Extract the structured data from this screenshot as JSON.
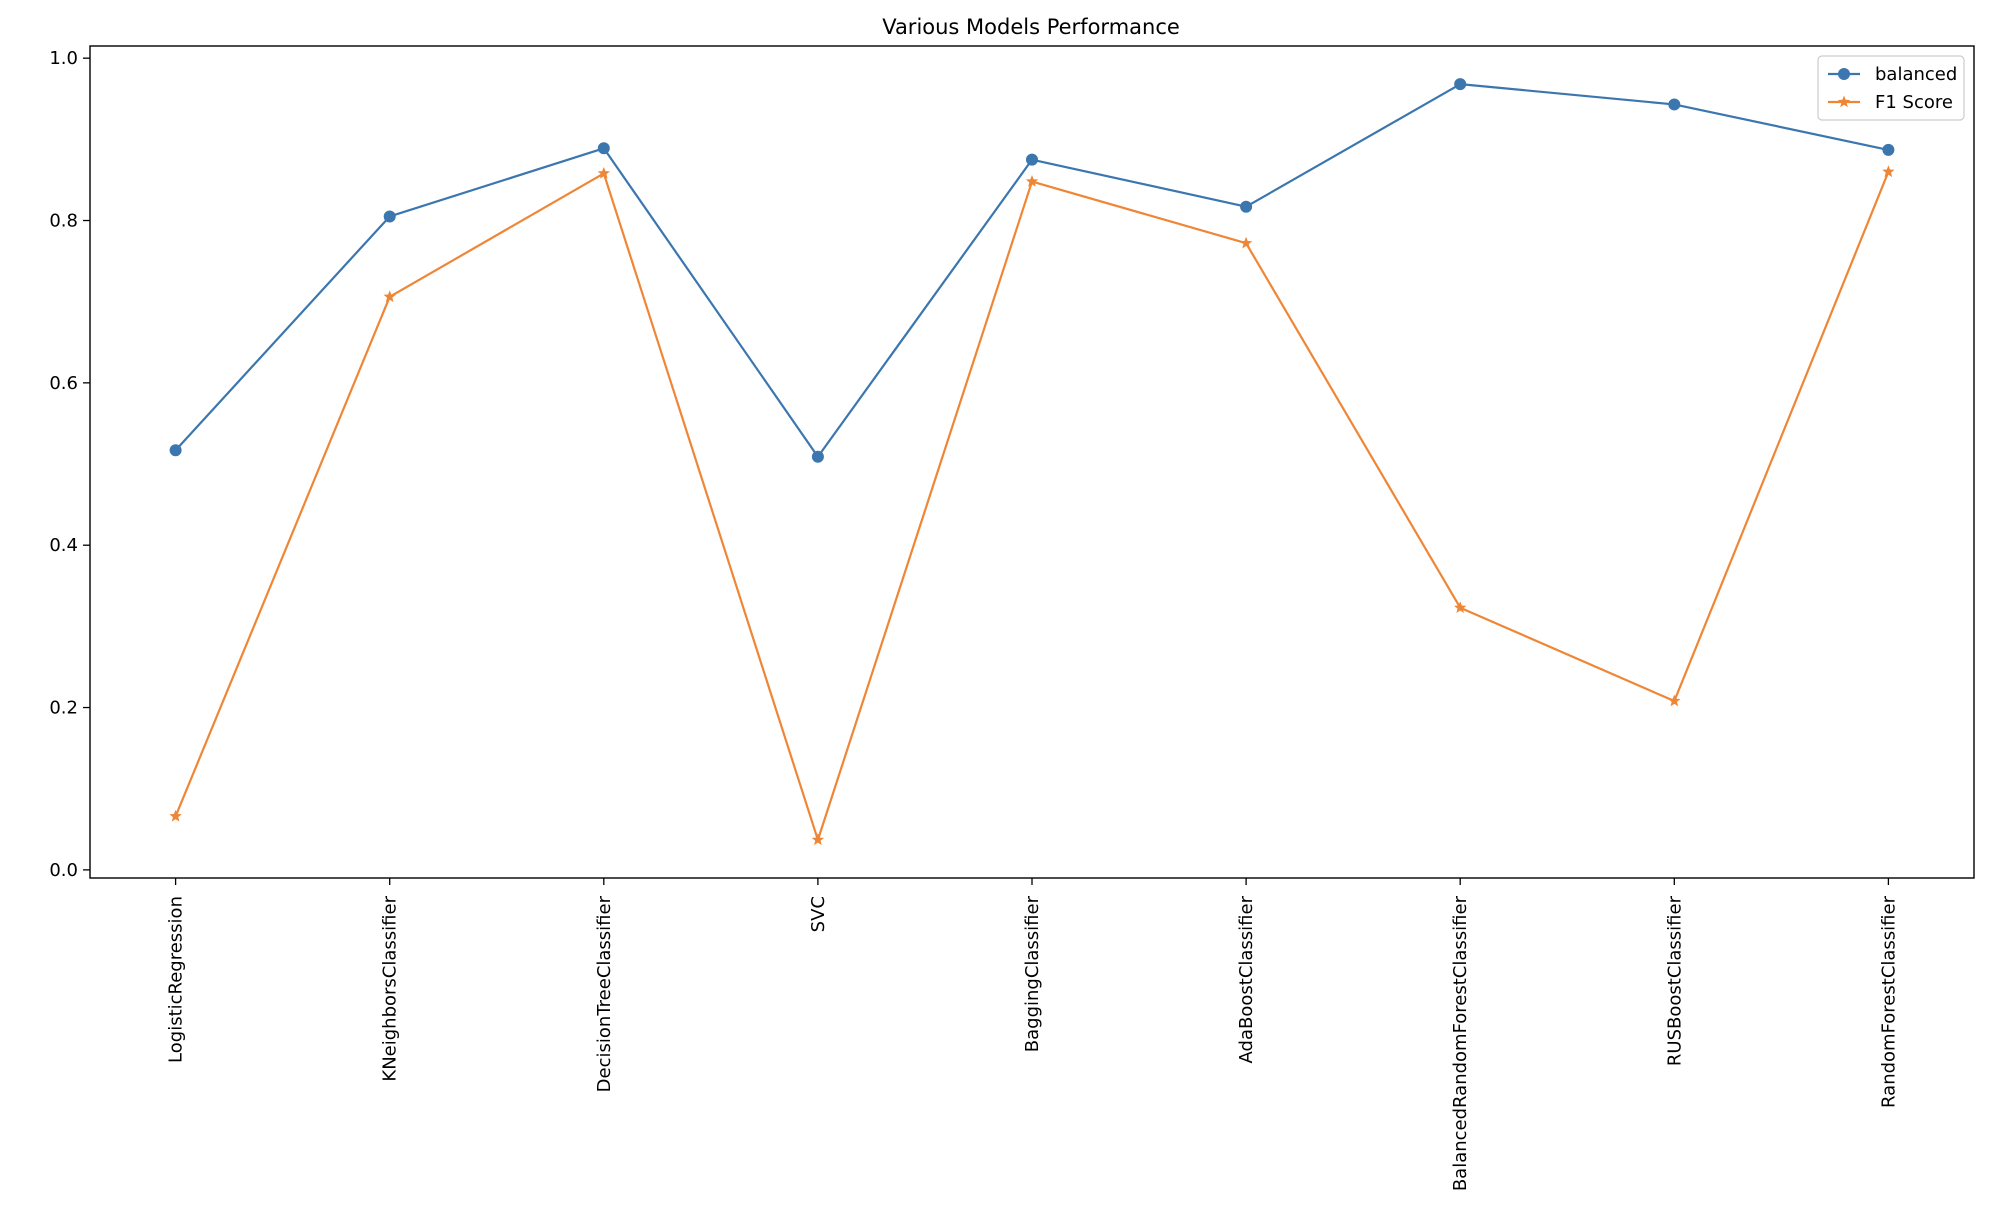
{
  "chart_data": {
    "type": "line",
    "title": "Various Models Performance",
    "xlabel": "",
    "ylabel": "",
    "categories": [
      "LogisticRegression",
      "KNeighborsClassifier",
      "DecisionTreeClassifier",
      "SVC",
      "BaggingClassifier",
      "AdaBoostClassifier",
      "BalancedRandomForestClassifier",
      "RUSBoostClassifier",
      "RandomForestClassifier"
    ],
    "series": [
      {
        "name": "balanced",
        "marker": "circle",
        "color": "#3b76af",
        "values": [
          0.517,
          0.805,
          0.889,
          0.509,
          0.875,
          0.817,
          0.968,
          0.943,
          0.887
        ]
      },
      {
        "name": "F1 Score",
        "marker": "star",
        "color": "#ef8636",
        "values": [
          0.066,
          0.706,
          0.858,
          0.037,
          0.848,
          0.772,
          0.323,
          0.208,
          0.86
        ]
      }
    ],
    "yticks": [
      "0.0",
      "0.2",
      "0.4",
      "0.6",
      "0.8",
      "1.0"
    ],
    "ylim": [
      -0.01,
      1.015
    ],
    "grid": false,
    "legend_position": "top-right"
  }
}
